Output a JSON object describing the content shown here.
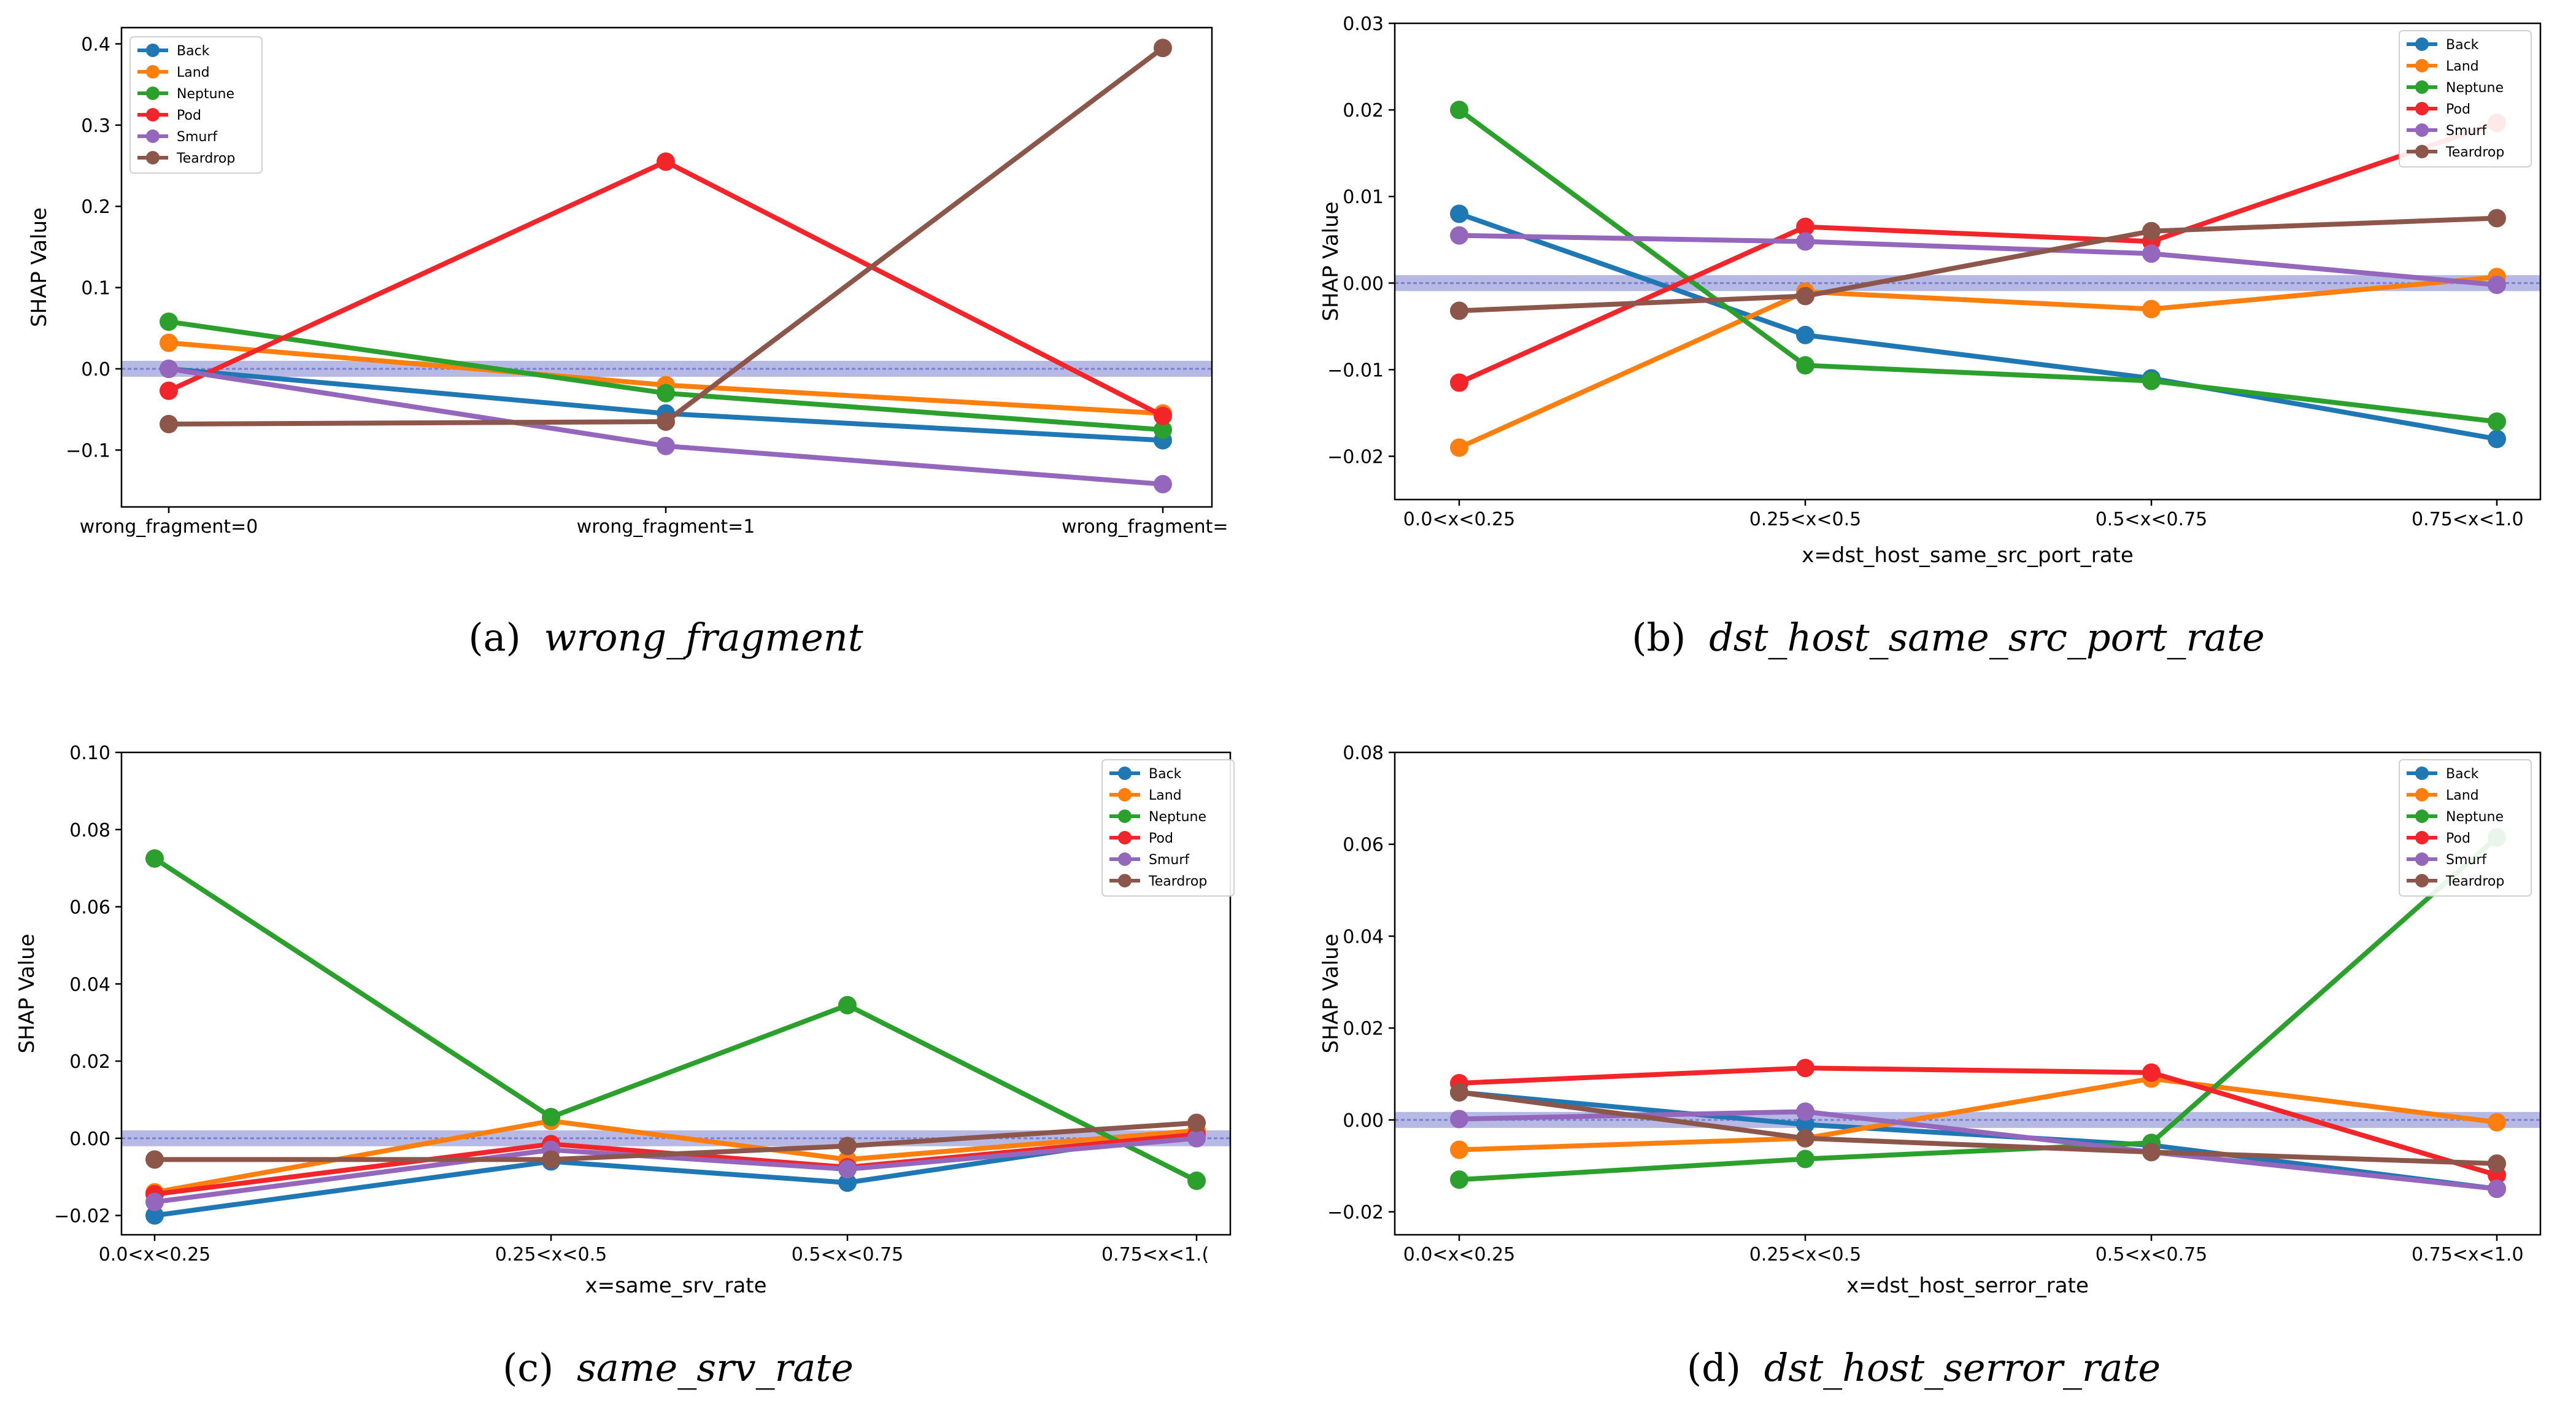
{
  "colors": {
    "Back": "#1f77b4",
    "Land": "#ff7f0e",
    "Neptune": "#2ca02c",
    "Pod": "#f2262a",
    "Smurf": "#9467bd",
    "Teardrop": "#8c564b",
    "zero_band": "#7b7fd0"
  },
  "chart_data": [
    {
      "type": "line",
      "panel": "a",
      "caption_label": "(a)",
      "caption_feature": "wrong_fragment",
      "xlabel": "",
      "ylabel": "SHAP Value",
      "categories": [
        "wrong_fragment=0",
        "wrong_fragment=1",
        "wrong_fragment="
      ],
      "ylim": [
        -0.17,
        0.42
      ],
      "yticks": [
        -0.1,
        0.0,
        0.1,
        0.2,
        0.3,
        0.4
      ],
      "ytick_labels": [
        "−0.1",
        "0.0",
        "0.1",
        "0.2",
        "0.3",
        "0.4"
      ],
      "legend_position": "top-left",
      "series": [
        {
          "name": "Back",
          "values": [
            0.0,
            -0.055,
            -0.088
          ]
        },
        {
          "name": "Land",
          "values": [
            0.032,
            -0.02,
            -0.055
          ]
        },
        {
          "name": "Neptune",
          "values": [
            0.058,
            -0.03,
            -0.075
          ]
        },
        {
          "name": "Pod",
          "values": [
            -0.027,
            0.255,
            -0.058
          ]
        },
        {
          "name": "Smurf",
          "values": [
            0.0,
            -0.095,
            -0.142
          ]
        },
        {
          "name": "Teardrop",
          "values": [
            -0.068,
            -0.065,
            0.395
          ]
        }
      ]
    },
    {
      "type": "line",
      "panel": "b",
      "caption_label": "(b)",
      "caption_feature": "dst_host_same_src_port_rate",
      "xlabel": "x=dst_host_same_src_port_rate",
      "ylabel": "SHAP Value",
      "categories": [
        "0.0<x<0.25",
        "0.25<x<0.5",
        "0.5<x<0.75",
        "0.75<x<1.0"
      ],
      "ylim": [
        -0.025,
        0.03
      ],
      "yticks": [
        -0.02,
        -0.01,
        0.0,
        0.01,
        0.02,
        0.03
      ],
      "ytick_labels": [
        "−0.02",
        "−0.01",
        "0.00",
        "0.01",
        "0.02",
        "0.03"
      ],
      "legend_position": "top-right",
      "series": [
        {
          "name": "Back",
          "values": [
            0.008,
            -0.006,
            -0.011,
            -0.018
          ]
        },
        {
          "name": "Land",
          "values": [
            -0.019,
            -0.001,
            -0.003,
            0.0007
          ]
        },
        {
          "name": "Neptune",
          "values": [
            0.02,
            -0.0095,
            -0.0113,
            -0.016
          ]
        },
        {
          "name": "Pod",
          "values": [
            -0.0115,
            0.0065,
            0.0048,
            0.0185
          ]
        },
        {
          "name": "Smurf",
          "values": [
            0.0055,
            0.0048,
            0.0034,
            -0.0002
          ]
        },
        {
          "name": "Teardrop",
          "values": [
            -0.0032,
            -0.0015,
            0.006,
            0.0075
          ]
        }
      ]
    },
    {
      "type": "line",
      "panel": "c",
      "caption_label": "(c)",
      "caption_feature": "same_srv_rate",
      "xlabel": "x=same_srv_rate",
      "ylabel": "SHAP Value",
      "categories": [
        "0.0<x<0.25",
        "0.25<x<0.5",
        "0.5<x<0.75",
        "0.75<x<1.("
      ],
      "ylim": [
        -0.025,
        0.1
      ],
      "yticks": [
        -0.02,
        0.0,
        0.02,
        0.04,
        0.06,
        0.08,
        0.1
      ],
      "ytick_labels": [
        "−0.02",
        "0.00",
        "0.02",
        "0.04",
        "0.06",
        "0.08",
        "0.10"
      ],
      "legend_position": "top-right",
      "series": [
        {
          "name": "Back",
          "values": [
            -0.02,
            -0.006,
            -0.0115,
            0.002
          ]
        },
        {
          "name": "Land",
          "values": [
            -0.014,
            0.0045,
            -0.0055,
            0.002
          ]
        },
        {
          "name": "Neptune",
          "values": [
            0.0725,
            0.0055,
            0.0345,
            -0.011
          ]
        },
        {
          "name": "Pod",
          "values": [
            -0.0145,
            -0.0015,
            -0.0075,
            0.001
          ]
        },
        {
          "name": "Smurf",
          "values": [
            -0.0165,
            -0.003,
            -0.008,
            0.0
          ]
        },
        {
          "name": "Teardrop",
          "values": [
            -0.0055,
            -0.0055,
            -0.002,
            0.004
          ]
        }
      ]
    },
    {
      "type": "line",
      "panel": "d",
      "caption_label": "(d)",
      "caption_feature": "dst_host_serror_rate",
      "xlabel": "x=dst_host_serror_rate",
      "ylabel": "SHAP Value",
      "categories": [
        "0.0<x<0.25",
        "0.25<x<0.5",
        "0.5<x<0.75",
        "0.75<x<1.0"
      ],
      "ylim": [
        -0.025,
        0.08
      ],
      "yticks": [
        -0.02,
        0.0,
        0.02,
        0.04,
        0.06,
        0.08
      ],
      "ytick_labels": [
        "−0.02",
        "0.00",
        "0.02",
        "0.04",
        "0.06",
        "0.08"
      ],
      "legend_position": "top-right",
      "series": [
        {
          "name": "Back",
          "values": [
            0.006,
            -0.001,
            -0.0055,
            -0.015
          ]
        },
        {
          "name": "Land",
          "values": [
            -0.0065,
            -0.004,
            0.009,
            -0.0005
          ]
        },
        {
          "name": "Neptune",
          "values": [
            -0.013,
            -0.0085,
            -0.005,
            0.0615
          ]
        },
        {
          "name": "Pod",
          "values": [
            0.008,
            0.0113,
            0.0103,
            -0.012
          ]
        },
        {
          "name": "Smurf",
          "values": [
            0.0002,
            0.0018,
            -0.007,
            -0.015
          ]
        },
        {
          "name": "Teardrop",
          "values": [
            0.006,
            -0.004,
            -0.007,
            -0.0095
          ]
        }
      ]
    }
  ]
}
